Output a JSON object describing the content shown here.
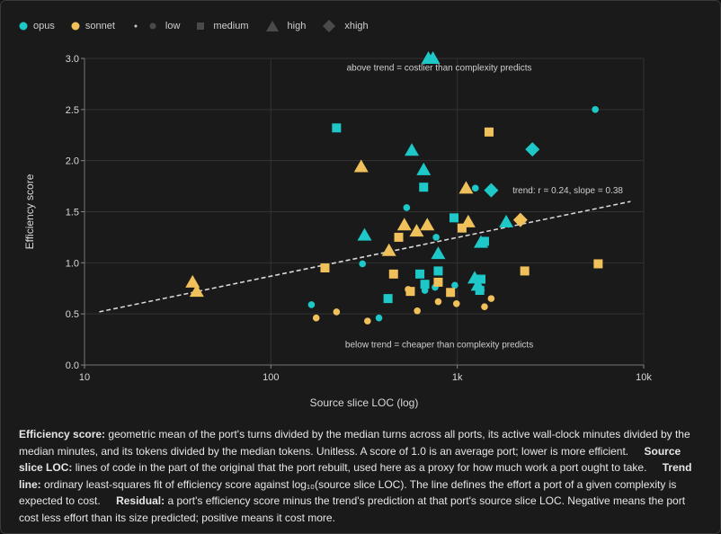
{
  "chart_data": {
    "type": "scatter",
    "xlabel": "Source slice LOC (log)",
    "ylabel": "Efficiency score",
    "x_scale": "log",
    "xlim": [
      10,
      10000
    ],
    "ylim": [
      0,
      3
    ],
    "x_ticks": [
      10,
      100,
      1000,
      10000
    ],
    "x_tick_labels": [
      "10",
      "100",
      "1k",
      "10k"
    ],
    "y_ticks": [
      0,
      0.5,
      1,
      1.5,
      2,
      2.5,
      3
    ],
    "y_tick_labels": [
      "0.0",
      "0.5",
      "1.0",
      "1.5",
      "2.0",
      "2.5",
      "3.0"
    ],
    "grid": true,
    "legend_position": "top-left",
    "legend": {
      "colors": [
        {
          "label": "opus",
          "color": "#1ec8c8"
        },
        {
          "label": "sonnet",
          "color": "#f0c05a"
        }
      ],
      "shapes": [
        {
          "label": "low",
          "shape": "dot"
        },
        {
          "label": "medium",
          "shape": "square"
        },
        {
          "label": "high",
          "shape": "triangle"
        },
        {
          "label": "xhigh",
          "shape": "diamond"
        }
      ]
    },
    "trend": {
      "x": [
        12,
        8500
      ],
      "y": [
        0.52,
        1.6
      ],
      "label": "trend: r = 0.24, slope = 0.38",
      "label_x": 1200,
      "label_y": 1.68
    },
    "annotations": [
      {
        "text": "above trend = costlier than complexity predicts",
        "x": 800,
        "y": 2.88
      },
      {
        "text": "below trend = cheaper than complexity predicts",
        "x": 800,
        "y": 0.17
      }
    ],
    "points": [
      {
        "x": 165,
        "y": 0.59,
        "model": "opus",
        "effort": "low"
      },
      {
        "x": 310,
        "y": 0.99,
        "model": "opus",
        "effort": "low"
      },
      {
        "x": 380,
        "y": 0.46,
        "model": "opus",
        "effort": "low"
      },
      {
        "x": 535,
        "y": 1.54,
        "model": "opus",
        "effort": "low"
      },
      {
        "x": 670,
        "y": 0.73,
        "model": "opus",
        "effort": "low"
      },
      {
        "x": 760,
        "y": 0.76,
        "model": "opus",
        "effort": "low"
      },
      {
        "x": 770,
        "y": 1.25,
        "model": "opus",
        "effort": "low"
      },
      {
        "x": 970,
        "y": 0.78,
        "model": "opus",
        "effort": "low"
      },
      {
        "x": 1250,
        "y": 1.73,
        "model": "opus",
        "effort": "low"
      },
      {
        "x": 5500,
        "y": 2.5,
        "model": "opus",
        "effort": "low"
      },
      {
        "x": 175,
        "y": 0.46,
        "model": "sonnet",
        "effort": "low"
      },
      {
        "x": 225,
        "y": 0.52,
        "model": "sonnet",
        "effort": "low"
      },
      {
        "x": 330,
        "y": 0.43,
        "model": "sonnet",
        "effort": "low"
      },
      {
        "x": 545,
        "y": 0.74,
        "model": "sonnet",
        "effort": "low"
      },
      {
        "x": 610,
        "y": 0.53,
        "model": "sonnet",
        "effort": "low"
      },
      {
        "x": 790,
        "y": 0.62,
        "model": "sonnet",
        "effort": "low"
      },
      {
        "x": 990,
        "y": 0.6,
        "model": "sonnet",
        "effort": "low"
      },
      {
        "x": 1400,
        "y": 0.57,
        "model": "sonnet",
        "effort": "low"
      },
      {
        "x": 1520,
        "y": 0.65,
        "model": "sonnet",
        "effort": "low"
      },
      {
        "x": 225,
        "y": 2.32,
        "model": "opus",
        "effort": "medium"
      },
      {
        "x": 425,
        "y": 0.65,
        "model": "opus",
        "effort": "medium"
      },
      {
        "x": 630,
        "y": 0.89,
        "model": "opus",
        "effort": "medium"
      },
      {
        "x": 660,
        "y": 1.74,
        "model": "opus",
        "effort": "medium"
      },
      {
        "x": 670,
        "y": 0.79,
        "model": "opus",
        "effort": "medium"
      },
      {
        "x": 790,
        "y": 0.92,
        "model": "opus",
        "effort": "medium"
      },
      {
        "x": 960,
        "y": 1.44,
        "model": "opus",
        "effort": "medium"
      },
      {
        "x": 1320,
        "y": 0.73,
        "model": "opus",
        "effort": "medium"
      },
      {
        "x": 1340,
        "y": 0.84,
        "model": "opus",
        "effort": "medium"
      },
      {
        "x": 1400,
        "y": 1.21,
        "model": "opus",
        "effort": "medium"
      },
      {
        "x": 195,
        "y": 0.95,
        "model": "sonnet",
        "effort": "medium"
      },
      {
        "x": 455,
        "y": 0.89,
        "model": "sonnet",
        "effort": "medium"
      },
      {
        "x": 485,
        "y": 1.25,
        "model": "sonnet",
        "effort": "medium"
      },
      {
        "x": 560,
        "y": 0.72,
        "model": "sonnet",
        "effort": "medium"
      },
      {
        "x": 790,
        "y": 0.81,
        "model": "sonnet",
        "effort": "medium"
      },
      {
        "x": 920,
        "y": 0.71,
        "model": "sonnet",
        "effort": "medium"
      },
      {
        "x": 1060,
        "y": 1.34,
        "model": "sonnet",
        "effort": "medium"
      },
      {
        "x": 1480,
        "y": 2.28,
        "model": "sonnet",
        "effort": "medium"
      },
      {
        "x": 2300,
        "y": 0.92,
        "model": "sonnet",
        "effort": "medium"
      },
      {
        "x": 5700,
        "y": 0.99,
        "model": "sonnet",
        "effort": "medium"
      },
      {
        "x": 700,
        "y": 3.0,
        "model": "opus",
        "effort": "high"
      },
      {
        "x": 740,
        "y": 3.0,
        "model": "opus",
        "effort": "high"
      },
      {
        "x": 570,
        "y": 2.1,
        "model": "opus",
        "effort": "high"
      },
      {
        "x": 660,
        "y": 1.91,
        "model": "opus",
        "effort": "high"
      },
      {
        "x": 318,
        "y": 1.27,
        "model": "opus",
        "effort": "high"
      },
      {
        "x": 790,
        "y": 1.09,
        "model": "opus",
        "effort": "high"
      },
      {
        "x": 1240,
        "y": 0.85,
        "model": "opus",
        "effort": "high"
      },
      {
        "x": 1290,
        "y": 0.78,
        "model": "opus",
        "effort": "high"
      },
      {
        "x": 1340,
        "y": 1.2,
        "model": "opus",
        "effort": "high"
      },
      {
        "x": 1830,
        "y": 1.4,
        "model": "opus",
        "effort": "high"
      },
      {
        "x": 38,
        "y": 0.81,
        "model": "sonnet",
        "effort": "high"
      },
      {
        "x": 40,
        "y": 0.72,
        "model": "sonnet",
        "effort": "high"
      },
      {
        "x": 305,
        "y": 1.94,
        "model": "sonnet",
        "effort": "high"
      },
      {
        "x": 430,
        "y": 1.12,
        "model": "sonnet",
        "effort": "high"
      },
      {
        "x": 520,
        "y": 1.37,
        "model": "sonnet",
        "effort": "high"
      },
      {
        "x": 605,
        "y": 1.31,
        "model": "sonnet",
        "effort": "high"
      },
      {
        "x": 690,
        "y": 1.37,
        "model": "sonnet",
        "effort": "high"
      },
      {
        "x": 1115,
        "y": 1.73,
        "model": "sonnet",
        "effort": "high"
      },
      {
        "x": 1145,
        "y": 1.4,
        "model": "sonnet",
        "effort": "high"
      },
      {
        "x": 1520,
        "y": 1.71,
        "model": "opus",
        "effort": "xhigh"
      },
      {
        "x": 2530,
        "y": 2.11,
        "model": "opus",
        "effort": "xhigh"
      },
      {
        "x": 2180,
        "y": 1.42,
        "model": "sonnet",
        "effort": "xhigh"
      }
    ]
  },
  "caption": {
    "efficiency_term": "Efficiency score:",
    "efficiency_def": "geometric mean of the port's turns divided by the median turns across all ports, its active wall-clock minutes divided by the median minutes, and its tokens divided by the median tokens. Unitless. A score of 1.0 is an average port; lower is more efficient.",
    "loc_term": "Source slice LOC:",
    "loc_def": "lines of code in the part of the original that the port rebuilt, used here as a proxy for how much work a port ought to take.",
    "trend_term": "Trend line:",
    "trend_def": "ordinary least-squares fit of efficiency score against log₁₀(source slice LOC). The line defines the effort a port of a given complexity is expected to cost.",
    "residual_term": "Residual:",
    "residual_def": "a port's efficiency score minus the trend's prediction at that port's source slice LOC. Negative means the port cost less effort than its size predicted; positive means it cost more."
  }
}
